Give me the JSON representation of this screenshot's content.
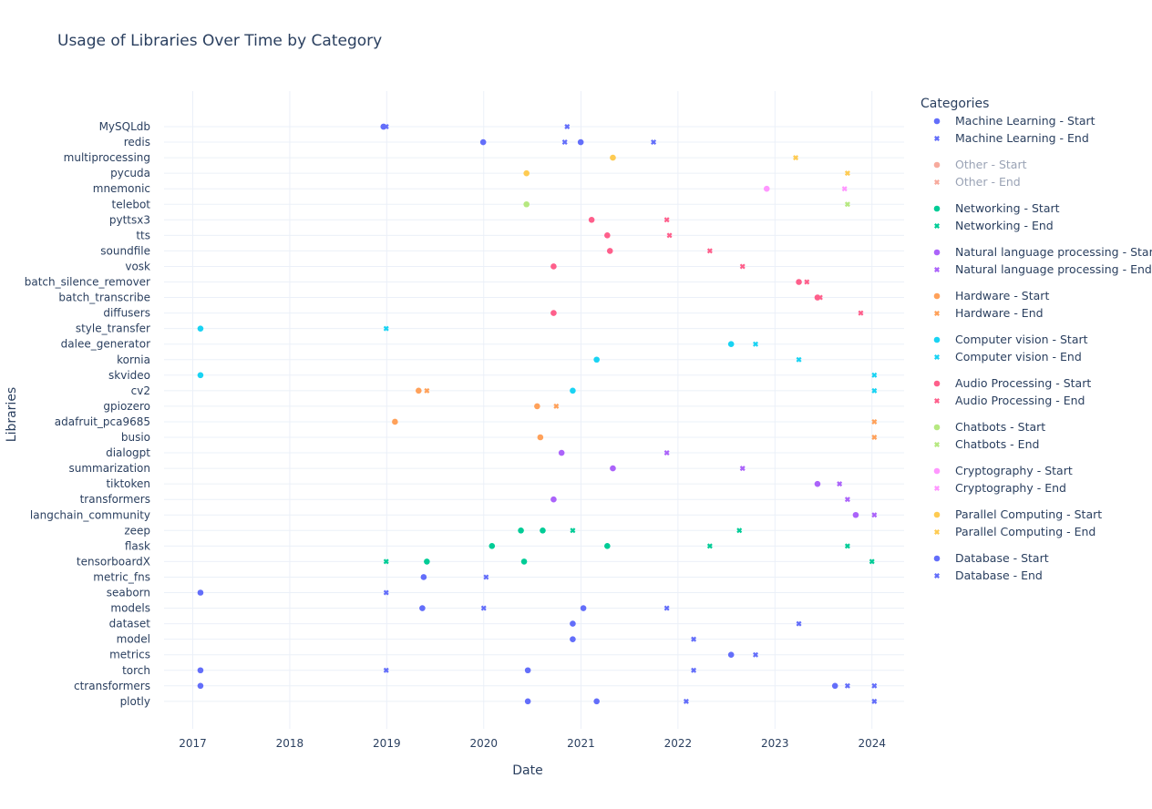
{
  "chart_data": {
    "type": "scatter",
    "title": "Usage of Libraries Over Time by Category",
    "xlabel": "Date",
    "ylabel": "Libraries",
    "xlim": [
      "2016-09-15",
      "2024-05-01"
    ],
    "x_ticks": [
      "2017",
      "2018",
      "2019",
      "2020",
      "2021",
      "2022",
      "2023",
      "2024"
    ],
    "grid": true,
    "legend_title": "Categories",
    "legend_position": "right",
    "libraries": [
      "MySQLdb",
      "redis",
      "multiprocessing",
      "pycuda",
      "mnemonic",
      "telebot",
      "pyttsx3",
      "tts",
      "soundfile",
      "vosk",
      "batch_silence_remover",
      "batch_transcribe",
      "diffusers",
      "style_transfer",
      "dalee_generator",
      "kornia",
      "skvideo",
      "cv2",
      "gpiozero",
      "adafruit_pca9685",
      "busio",
      "dialogpt",
      "summarization",
      "tiktoken",
      "transformers",
      "langchain_community",
      "zeep",
      "flask",
      "tensorboardX",
      "metric_fns",
      "seaborn",
      "models",
      "dataset",
      "model",
      "metrics",
      "torch",
      "ctransformers",
      "plotly"
    ],
    "categories": [
      {
        "name": "Machine Learning",
        "color": "#636efa",
        "legend_dimmed": false,
        "points": [
          {
            "lib": "MySQLdb",
            "start": "2018-12-20",
            "end": "2018-12-30"
          },
          {
            "lib": "redis",
            "start": "2020-12-31",
            "end": "2020-11-01"
          },
          {
            "lib": "metric_fns",
            "start": "2019-05-20",
            "end": "2020-01-10"
          },
          {
            "lib": "seaborn",
            "start": "2017-01-30",
            "end": "2018-12-30"
          },
          {
            "lib": "models",
            "start": "2019-05-15",
            "end": "2020-01-01"
          },
          {
            "lib": "dataset",
            "start": "2020-12-01",
            "end": "2023-04-01"
          },
          {
            "lib": "model",
            "start": "2020-12-01",
            "end": "2022-03-01"
          },
          {
            "lib": "metrics",
            "start": "2022-07-20",
            "end": "2022-10-20"
          },
          {
            "lib": "torch",
            "start": "2020-06-15",
            "end": "2022-03-01"
          },
          {
            "lib": "ctransformers",
            "start": "2023-08-15",
            "end": "2023-10-01"
          },
          {
            "lib": "plotly",
            "start": "2021-03-01",
            "end": "2022-02-01"
          }
        ]
      },
      {
        "name": "Other",
        "color": "#ef553b",
        "legend_dimmed": true,
        "points": []
      },
      {
        "name": "Networking",
        "color": "#00cc96",
        "legend_dimmed": false,
        "points": [
          {
            "lib": "zeep",
            "start": "2020-05-20",
            "end": "2022-08-20"
          },
          {
            "lib": "flask",
            "start": "2020-02-01",
            "end": "2023-10-01"
          },
          {
            "lib": "tensorboardX",
            "start": "2019-06-01",
            "end": "2024-01-01"
          },
          {
            "lib": "tensorboardX",
            "start": "2020-06-01",
            "end": "2018-12-30"
          },
          {
            "lib": "zeep",
            "start": "2020-08-10",
            "end": "2020-12-01"
          },
          {
            "lib": "flask",
            "start": "2021-04-10",
            "end": "2022-05-01"
          }
        ]
      },
      {
        "name": "Natural language processing",
        "color": "#ab63fa",
        "legend_dimmed": false,
        "points": [
          {
            "lib": "dialogpt",
            "start": "2020-10-20",
            "end": "2021-11-20"
          },
          {
            "lib": "summarization",
            "start": "2021-05-01",
            "end": "2022-09-01"
          },
          {
            "lib": "tiktoken",
            "start": "2023-06-10",
            "end": "2023-09-01"
          },
          {
            "lib": "transformers",
            "start": "2020-09-20",
            "end": "2023-10-01"
          },
          {
            "lib": "langchain_community",
            "start": "2023-11-01",
            "end": "2024-01-10"
          }
        ]
      },
      {
        "name": "Hardware",
        "color": "#ffa15a",
        "legend_dimmed": false,
        "points": [
          {
            "lib": "gpiozero",
            "start": "2020-07-20",
            "end": "2020-09-30"
          },
          {
            "lib": "adafruit_pca9685",
            "start": "2019-02-01",
            "end": "2024-01-10"
          },
          {
            "lib": "busio",
            "start": "2020-08-01",
            "end": "2024-01-10"
          },
          {
            "lib": "cv2",
            "start": "2019-05-01",
            "end": "2019-06-01"
          }
        ]
      },
      {
        "name": "Computer vision",
        "color": "#19d3f3",
        "legend_dimmed": false,
        "points": [
          {
            "lib": "style_transfer",
            "start": "2017-01-30",
            "end": "2018-12-30"
          },
          {
            "lib": "dalee_generator",
            "start": "2022-07-20",
            "end": "2022-10-20"
          },
          {
            "lib": "kornia",
            "start": "2021-03-01",
            "end": "2023-04-01"
          },
          {
            "lib": "skvideo",
            "start": "2017-01-30",
            "end": "2024-01-10"
          },
          {
            "lib": "cv2",
            "start": "2020-12-01",
            "end": "2024-01-10"
          }
        ]
      },
      {
        "name": "Audio Processing",
        "color": "#fe5f8b",
        "legend_dimmed": false,
        "points": [
          {
            "lib": "pyttsx3",
            "start": "2021-02-10",
            "end": "2021-11-20"
          },
          {
            "lib": "tts",
            "start": "2021-04-10",
            "end": "2021-11-30"
          },
          {
            "lib": "soundfile",
            "start": "2021-04-20",
            "end": "2022-05-01"
          },
          {
            "lib": "vosk",
            "start": "2020-09-20",
            "end": "2022-09-01"
          },
          {
            "lib": "batch_silence_remover",
            "start": "2023-04-01",
            "end": "2023-05-01"
          },
          {
            "lib": "batch_transcribe",
            "start": "2023-06-10",
            "end": "2023-06-20"
          },
          {
            "lib": "diffusers",
            "start": "2020-09-20",
            "end": "2023-11-20"
          }
        ]
      },
      {
        "name": "Chatbots",
        "color": "#b6e880",
        "legend_dimmed": false,
        "points": [
          {
            "lib": "telebot",
            "start": "2020-06-10",
            "end": "2023-10-01"
          }
        ]
      },
      {
        "name": "Cryptography",
        "color": "#ff97ff",
        "legend_dimmed": false,
        "points": [
          {
            "lib": "mnemonic",
            "start": "2022-12-01",
            "end": "2023-09-20"
          }
        ]
      },
      {
        "name": "Parallel Computing",
        "color": "#fecb52",
        "legend_dimmed": false,
        "points": [
          {
            "lib": "multiprocessing",
            "start": "2021-05-01",
            "end": "2023-03-20"
          },
          {
            "lib": "pycuda",
            "start": "2020-06-10",
            "end": "2023-10-01"
          }
        ]
      },
      {
        "name": "Database",
        "color": "#636efa",
        "legend_dimmed": false,
        "points": [
          {
            "lib": "MySQLdb",
            "start": "2018-12-20",
            "end": "2020-11-10"
          },
          {
            "lib": "redis",
            "start": "2019-12-30",
            "end": "2021-10-01"
          },
          {
            "lib": "models",
            "start": "2021-01-10",
            "end": "2021-11-20"
          },
          {
            "lib": "torch",
            "start": "2017-01-30",
            "end": "2018-12-30"
          },
          {
            "lib": "ctransformers",
            "start": "2017-01-30",
            "end": "2024-01-10"
          },
          {
            "lib": "plotly",
            "start": "2020-06-15",
            "end": "2024-01-10"
          }
        ]
      }
    ]
  }
}
